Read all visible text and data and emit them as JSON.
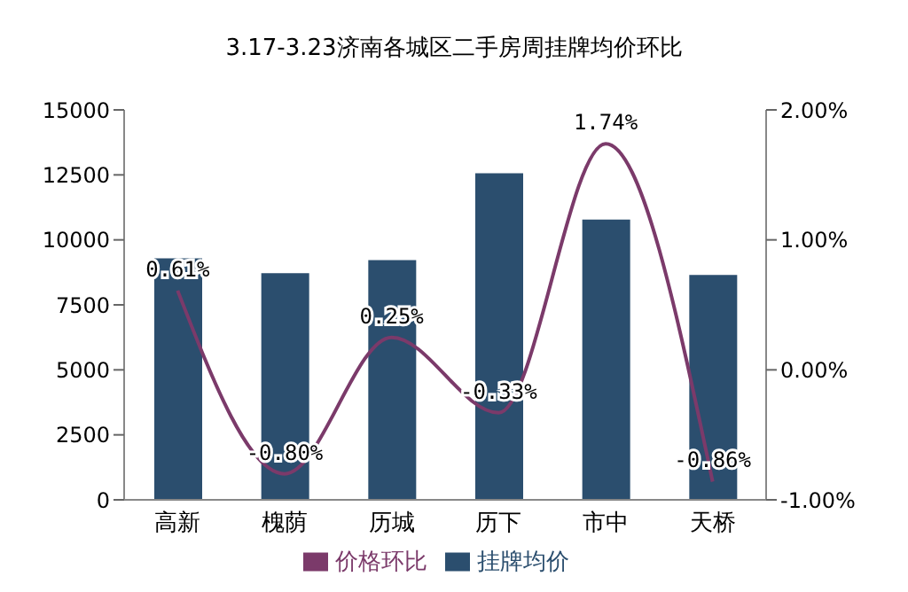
{
  "chart_data": {
    "type": "bar",
    "title": "3.17-3.23济南各城区二手房周挂牌均价环比",
    "categories": [
      "高新",
      "槐荫",
      "历城",
      "历下",
      "市中",
      "天桥"
    ],
    "series": [
      {
        "name": "挂牌均价",
        "color": "#2b4e6e",
        "values": [
          9290,
          8720,
          9220,
          12560,
          10780,
          8650
        ]
      },
      {
        "name": "价格环比",
        "type": "line",
        "axis": "y2",
        "color": "#7b3a6a",
        "values": [
          0.61,
          -0.8,
          0.25,
          -0.33,
          1.74,
          -0.86
        ],
        "value_labels": [
          "0.61%",
          "-0.80%",
          "0.25%",
          "-0.33%",
          "1.74%",
          "-0.86%"
        ]
      }
    ],
    "ylim": [
      0,
      15000
    ],
    "yticks": [
      0,
      2500,
      5000,
      7500,
      10000,
      12500,
      15000
    ],
    "y2lim": [
      -1,
      2
    ],
    "y2ticks": [
      {
        "value": -1,
        "label": "-1.00%"
      },
      {
        "value": 0,
        "label": "0.00%"
      },
      {
        "value": 1,
        "label": "1.00%"
      },
      {
        "value": 2,
        "label": "2.00%"
      }
    ],
    "legend": "bottom",
    "marker": "none",
    "line_style": "solid"
  }
}
